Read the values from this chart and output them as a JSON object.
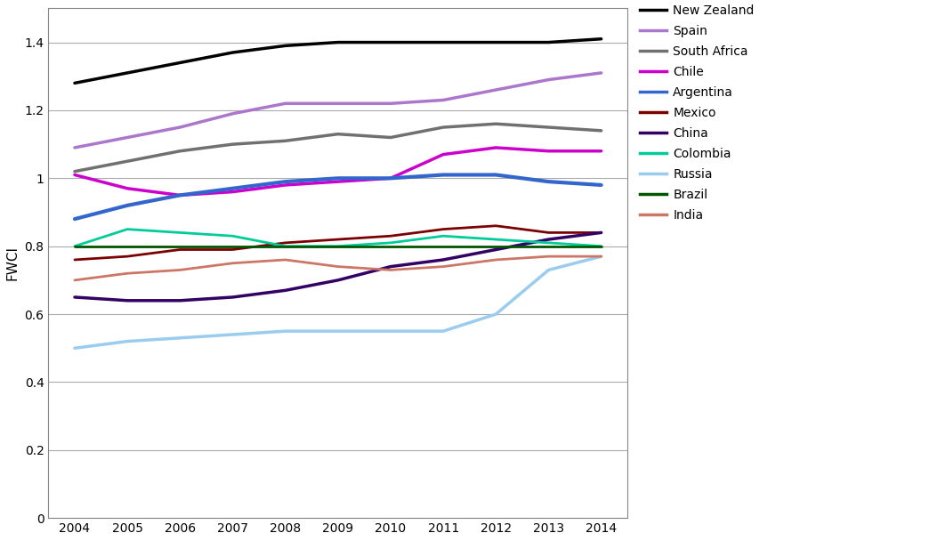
{
  "years": [
    2004,
    2005,
    2006,
    2007,
    2008,
    2009,
    2010,
    2011,
    2012,
    2013,
    2014
  ],
  "series": {
    "New Zealand": {
      "values": [
        1.28,
        1.31,
        1.34,
        1.37,
        1.39,
        1.4,
        1.4,
        1.4,
        1.4,
        1.4,
        1.41
      ],
      "color": "#000000",
      "linewidth": 2.5
    },
    "Spain": {
      "values": [
        1.09,
        1.12,
        1.15,
        1.19,
        1.22,
        1.22,
        1.22,
        1.23,
        1.26,
        1.29,
        1.31
      ],
      "color": "#AA77CC",
      "linewidth": 2.5
    },
    "South Africa": {
      "values": [
        1.02,
        1.05,
        1.08,
        1.1,
        1.11,
        1.13,
        1.12,
        1.15,
        1.16,
        1.15,
        1.14
      ],
      "color": "#707070",
      "linewidth": 2.5
    },
    "Chile": {
      "values": [
        1.01,
        0.97,
        0.95,
        0.96,
        0.98,
        0.99,
        1.0,
        1.07,
        1.09,
        1.08,
        1.08
      ],
      "color": "#CC00CC",
      "linewidth": 2.5
    },
    "Argentina": {
      "values": [
        0.88,
        0.92,
        0.95,
        0.97,
        0.99,
        1.0,
        1.0,
        1.01,
        1.01,
        0.99,
        0.98
      ],
      "color": "#3366CC",
      "linewidth": 3.0
    },
    "Mexico": {
      "values": [
        0.76,
        0.77,
        0.79,
        0.79,
        0.81,
        0.82,
        0.83,
        0.85,
        0.86,
        0.84,
        0.84
      ],
      "color": "#7B0000",
      "linewidth": 2.0
    },
    "China": {
      "values": [
        0.65,
        0.64,
        0.64,
        0.65,
        0.67,
        0.7,
        0.74,
        0.76,
        0.79,
        0.82,
        0.84
      ],
      "color": "#330066",
      "linewidth": 2.5
    },
    "Colombia": {
      "values": [
        0.8,
        0.85,
        0.84,
        0.83,
        0.8,
        0.8,
        0.81,
        0.83,
        0.82,
        0.81,
        0.8
      ],
      "color": "#00CC99",
      "linewidth": 2.0
    },
    "Russia": {
      "values": [
        0.5,
        0.52,
        0.53,
        0.54,
        0.55,
        0.55,
        0.55,
        0.55,
        0.6,
        0.73,
        0.77
      ],
      "color": "#99CCEE",
      "linewidth": 2.5
    },
    "Brazil": {
      "values": [
        0.8,
        0.8,
        0.8,
        0.8,
        0.8,
        0.8,
        0.8,
        0.8,
        0.8,
        0.8,
        0.8
      ],
      "color": "#005500",
      "linewidth": 2.0
    },
    "India": {
      "values": [
        0.7,
        0.72,
        0.73,
        0.75,
        0.76,
        0.74,
        0.73,
        0.74,
        0.76,
        0.77,
        0.77
      ],
      "color": "#CC7766",
      "linewidth": 2.0
    }
  },
  "ylabel": "FWCI",
  "ylim": [
    0,
    1.5
  ],
  "yticks": [
    0,
    0.2,
    0.4,
    0.6,
    0.8,
    1.0,
    1.2,
    1.4
  ],
  "ytick_labels": [
    "0",
    "0.2",
    "0.4",
    "0.6",
    "0.8",
    "1",
    "1.2",
    "1.4"
  ],
  "background_color": "#ffffff",
  "legend_order": [
    "New Zealand",
    "Spain",
    "South Africa",
    "Chile",
    "Argentina",
    "Mexico",
    "China",
    "Colombia",
    "Russia",
    "Brazil",
    "India"
  ],
  "figsize": [
    10.44,
    6.08
  ],
  "dpi": 100
}
